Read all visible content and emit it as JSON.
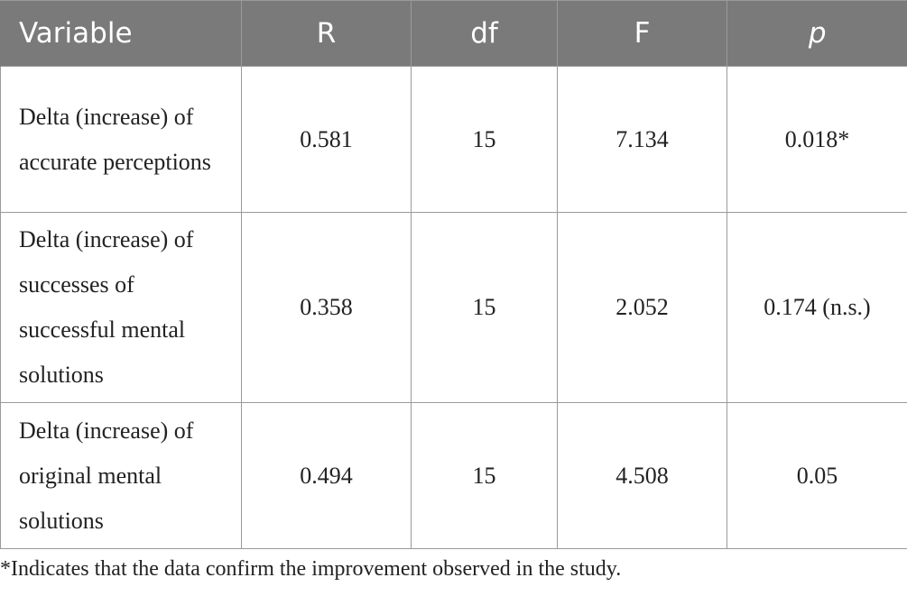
{
  "table": {
    "headers": [
      "Variable",
      "R",
      "df",
      "F",
      "p"
    ],
    "rows": [
      {
        "variable": "Delta (increase) of accurate perceptions",
        "R": "0.581",
        "df": "15",
        "F": "7.134",
        "p": "0.018*"
      },
      {
        "variable": "Delta (increase) of successes of successful mental solutions",
        "R": "0.358",
        "df": "15",
        "F": "2.052",
        "p": "0.174 (n.s.)"
      },
      {
        "variable": "Delta (increase) of original mental solutions",
        "R": "0.494",
        "df": "15",
        "F": "4.508",
        "p": "0.05"
      }
    ]
  },
  "footnote": "*Indicates that the data confirm the improvement observed in the study."
}
